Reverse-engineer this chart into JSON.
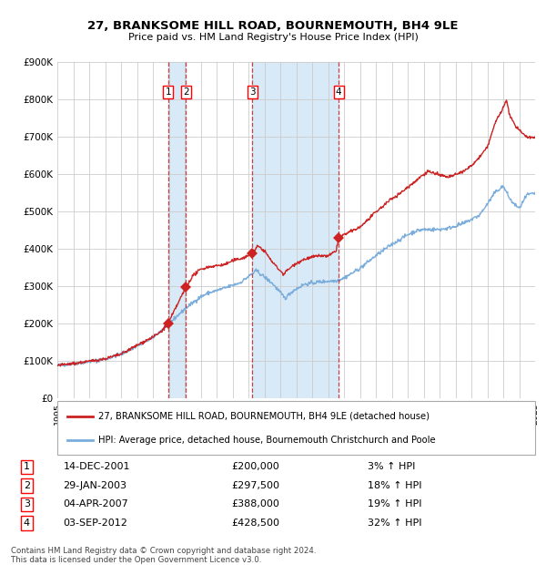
{
  "title": "27, BRANKSOME HILL ROAD, BOURNEMOUTH, BH4 9LE",
  "subtitle": "Price paid vs. HM Land Registry's House Price Index (HPI)",
  "legend_line1": "27, BRANKSOME HILL ROAD, BOURNEMOUTH, BH4 9LE (detached house)",
  "legend_line2": "HPI: Average price, detached house, Bournemouth Christchurch and Poole",
  "footer": "Contains HM Land Registry data © Crown copyright and database right 2024.\nThis data is licensed under the Open Government Licence v3.0.",
  "hpi_color": "#7aaddc",
  "price_color": "#cc2222",
  "marker_color": "#cc2222",
  "vline_color": "#cc2222",
  "shade_color": "#d8eaf8",
  "grid_color": "#cccccc",
  "bg_color": "#ffffff",
  "ylim": [
    0,
    900000
  ],
  "yticks": [
    0,
    100000,
    200000,
    300000,
    400000,
    500000,
    600000,
    700000,
    800000,
    900000
  ],
  "ytick_labels": [
    "£0",
    "£100K",
    "£200K",
    "£300K",
    "£400K",
    "£500K",
    "£600K",
    "£700K",
    "£800K",
    "£900K"
  ],
  "sales": [
    {
      "num": 1,
      "date": "14-DEC-2001",
      "price": 200000,
      "pct": "3%",
      "year": 2001.96
    },
    {
      "num": 2,
      "date": "29-JAN-2003",
      "price": 297500,
      "pct": "18%",
      "year": 2003.08
    },
    {
      "num": 3,
      "date": "04-APR-2007",
      "price": 388000,
      "pct": "19%",
      "year": 2007.25
    },
    {
      "num": 4,
      "date": "03-SEP-2012",
      "price": 428500,
      "pct": "32%",
      "year": 2012.67
    }
  ],
  "table_rows": [
    [
      "1",
      "14-DEC-2001",
      "£200,000",
      "3% ↑ HPI"
    ],
    [
      "2",
      "29-JAN-2003",
      "£297,500",
      "18% ↑ HPI"
    ],
    [
      "3",
      "04-APR-2007",
      "£388,000",
      "19% ↑ HPI"
    ],
    [
      "4",
      "03-SEP-2012",
      "£428,500",
      "32% ↑ HPI"
    ]
  ]
}
